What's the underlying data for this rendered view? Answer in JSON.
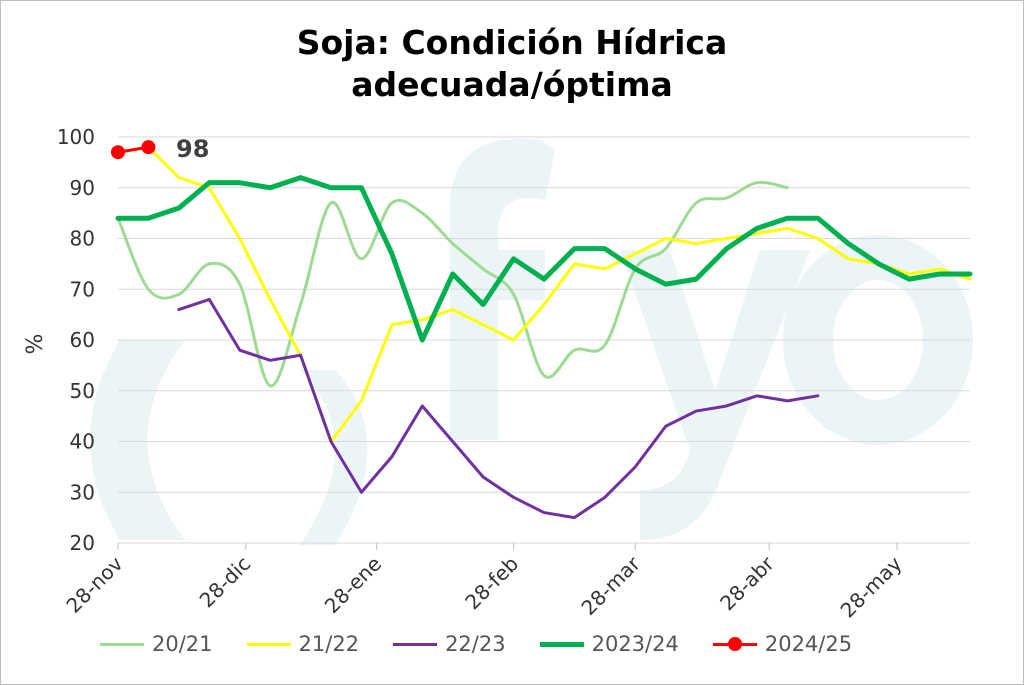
{
  "chart_data": {
    "type": "line",
    "title_line1": "Soja: Condición Hídrica",
    "title_line2": "adecuada/óptima",
    "ylabel": "%",
    "ylim": [
      20,
      100
    ],
    "yticks": [
      20,
      30,
      40,
      50,
      60,
      70,
      80,
      90,
      100
    ],
    "xlim": [
      0,
      28
    ],
    "xticks": [
      {
        "x": 0,
        "label": "28-nov"
      },
      {
        "x": 4.2,
        "label": "28-dic"
      },
      {
        "x": 8.5,
        "label": "28-ene"
      },
      {
        "x": 13,
        "label": "28-feb"
      },
      {
        "x": 17,
        "label": "28-mar"
      },
      {
        "x": 21.4,
        "label": "28-abr"
      },
      {
        "x": 25.6,
        "label": "28-may"
      }
    ],
    "annotation": "98",
    "series": [
      {
        "name": "20/21",
        "color": "#9ddb93",
        "width": 3,
        "x": [
          0,
          1,
          2,
          3,
          4,
          5,
          6,
          7,
          8,
          9,
          10,
          11,
          12,
          13,
          14,
          15,
          16,
          17,
          18,
          19,
          20,
          21,
          22
        ],
        "y": [
          84,
          70,
          69,
          75,
          71,
          51,
          67,
          87,
          76,
          87,
          85,
          79,
          74,
          69,
          53,
          58,
          59,
          74,
          78,
          87,
          88,
          91,
          90
        ]
      },
      {
        "name": "21/22",
        "color": "#ffff00",
        "width": 3,
        "x": [
          0,
          1,
          2,
          3,
          4,
          5,
          6,
          7,
          8,
          9,
          10,
          11,
          12,
          13,
          14,
          15,
          16,
          17,
          18,
          19,
          20,
          21,
          22,
          23,
          24,
          25,
          26,
          27,
          28
        ],
        "y": [
          97,
          98,
          92,
          90,
          80,
          68,
          57,
          40,
          48,
          63,
          64,
          66,
          63,
          60,
          67,
          75,
          74,
          77,
          80,
          79,
          80,
          81,
          82,
          80,
          76,
          75,
          73,
          74,
          72
        ]
      },
      {
        "name": "22/23",
        "color": "#7030a0",
        "width": 3,
        "x": [
          2,
          3,
          4,
          5,
          6,
          7,
          8,
          9,
          10,
          11,
          12,
          13,
          14,
          15,
          16,
          17,
          18,
          19,
          20,
          21,
          22,
          23
        ],
        "y": [
          66,
          68,
          58,
          56,
          57,
          40,
          30,
          37,
          47,
          40,
          33,
          29,
          26,
          25,
          29,
          35,
          43,
          46,
          47,
          49,
          48,
          49
        ]
      },
      {
        "name": "2023/24",
        "color": "#00b050",
        "width": 5,
        "x": [
          0,
          1,
          2,
          3,
          4,
          5,
          6,
          7,
          8,
          9,
          10,
          11,
          12,
          13,
          14,
          15,
          16,
          17,
          18,
          19,
          20,
          21,
          22,
          23,
          24,
          25,
          26,
          27,
          28
        ],
        "y": [
          84,
          84,
          86,
          91,
          91,
          90,
          92,
          90,
          90,
          77,
          60,
          73,
          67,
          76,
          72,
          78,
          78,
          74,
          71,
          72,
          78,
          82,
          84,
          84,
          79,
          75,
          72,
          73,
          73
        ]
      },
      {
        "name": "2024/25",
        "color": "#ff0000",
        "width": 3,
        "markers": true,
        "x": [
          0,
          1
        ],
        "y": [
          97,
          98
        ]
      }
    ]
  }
}
